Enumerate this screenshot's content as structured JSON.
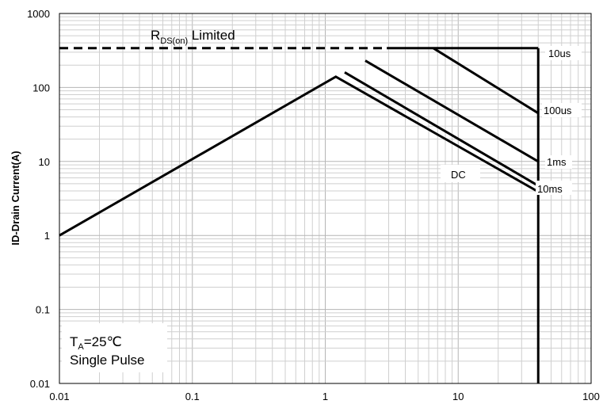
{
  "chart_data": {
    "type": "line",
    "title": "",
    "xlabel": "",
    "ylabel": "ID-Drain Current(A)",
    "x_scale": "log",
    "y_scale": "log",
    "xlim": [
      0.01,
      100
    ],
    "ylim": [
      0.01,
      1000
    ],
    "grid": true,
    "x_tick_labels": [
      "0.01",
      "0.1",
      "1",
      "10",
      "100"
    ],
    "y_tick_labels": [
      "1000",
      "100",
      "10",
      "1",
      "0.1",
      "0.01"
    ],
    "rds_limit": {
      "label_main": "R",
      "label_sub": "DS(on)",
      "label_rest": " Limited",
      "value": 340,
      "x_end": 2.9
    },
    "series": [
      {
        "name": "DC",
        "x": [
          0.01,
          1.2,
          40
        ],
        "y": [
          1,
          140,
          3.9
        ]
      },
      {
        "name": "10ms",
        "x": [
          1.4,
          40
        ],
        "y": [
          160,
          4.7
        ]
      },
      {
        "name": "1ms",
        "x": [
          2.0,
          40
        ],
        "y": [
          230,
          10
        ]
      },
      {
        "name": "100us",
        "x": [
          6.5,
          40
        ],
        "y": [
          340,
          45
        ]
      },
      {
        "name": "10us",
        "x": [
          2.9,
          40
        ],
        "y": [
          340,
          340
        ]
      }
    ],
    "vertical_limit": {
      "x": 40,
      "y_from": 0.01,
      "y_to": 340
    },
    "annotations": [
      "T",
      "A",
      "=25℃",
      "Single Pulse"
    ]
  }
}
